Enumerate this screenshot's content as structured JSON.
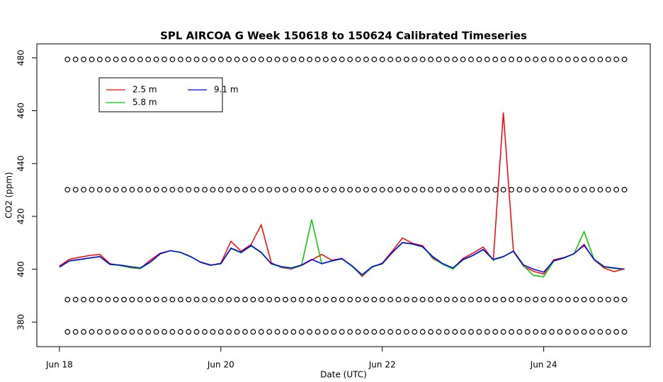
{
  "chart_data": {
    "type": "line",
    "title": "SPL AIRCOA G  Week 150618 to 150624  Calibrated Timeseries",
    "x_label": "Date (UTC)",
    "y_label": "CO2 (ppm)",
    "xlim": [
      -0.28,
      7.32
    ],
    "ylim": [
      370.7,
      485.3
    ],
    "xticks": [
      {
        "value": 0,
        "label": "Jun 18"
      },
      {
        "value": 2,
        "label": "Jun 20"
      },
      {
        "value": 4,
        "label": "Jun 22"
      },
      {
        "value": 6,
        "label": "Jun 24"
      }
    ],
    "yticks": [
      380,
      400,
      420,
      440,
      460,
      480
    ],
    "x": [
      0,
      0.125,
      0.25,
      0.375,
      0.5,
      0.625,
      0.75,
      0.875,
      1,
      1.125,
      1.25,
      1.375,
      1.5,
      1.625,
      1.75,
      1.875,
      2,
      2.125,
      2.25,
      2.375,
      2.5,
      2.625,
      2.75,
      2.875,
      3,
      3.125,
      3.25,
      3.375,
      3.5,
      3.625,
      3.75,
      3.875,
      4,
      4.125,
      4.25,
      4.375,
      4.5,
      4.625,
      4.75,
      4.875,
      5,
      5.125,
      5.25,
      5.375,
      5.5,
      5.625,
      5.75,
      5.875,
      6,
      6.125,
      6.25,
      6.375,
      6.5,
      6.625,
      6.75,
      6.875,
      7
    ],
    "series": [
      {
        "name": "2.5 m",
        "color": "#ff0000",
        "values": [
          401.2,
          403.8,
          404.5,
          405.2,
          405.6,
          402.1,
          401.4,
          400.6,
          400.2,
          403.4,
          406.1,
          407,
          406.4,
          404.8,
          402.5,
          401.4,
          402.3,
          410.6,
          406.8,
          409.4,
          416.8,
          402.4,
          400.6,
          400.1,
          401.4,
          403.5,
          405.6,
          403.4,
          404.1,
          401.2,
          397.3,
          400.8,
          402.3,
          406.9,
          411.8,
          409.8,
          408.9,
          404.1,
          401.9,
          400.2,
          404.1,
          406.1,
          408.4,
          403.4,
          459.3,
          406.6,
          401.1,
          399.2,
          398.2,
          403.6,
          404.4,
          405.8,
          409.4,
          403.5,
          400.4,
          399.1,
          400.2
        ]
      },
      {
        "name": "5.8 m",
        "color": "#00cc00",
        "values": [
          400.8,
          403.1,
          403.6,
          404.2,
          404.7,
          401.8,
          401.4,
          400.7,
          400.2,
          402.6,
          405.8,
          407,
          406.3,
          404.7,
          402.6,
          401.5,
          402,
          407.8,
          406.2,
          408.8,
          406.2,
          402,
          400.8,
          400.3,
          401.4,
          418.8,
          402,
          403.1,
          403.9,
          401.1,
          397.6,
          400.8,
          402,
          406.3,
          410,
          409.5,
          408.4,
          404.5,
          401.8,
          400.1,
          403.5,
          405.2,
          407.4,
          403.5,
          404.7,
          406.8,
          401.3,
          397.6,
          397.2,
          403.1,
          404.2,
          405.8,
          414.2,
          403.6,
          400.8,
          400.3,
          400
        ]
      },
      {
        "name": "9.1 m",
        "color": "#0000ff",
        "values": [
          400.8,
          403.2,
          403.7,
          404.3,
          404.8,
          401.9,
          401.6,
          401,
          400.5,
          402.7,
          405.9,
          407,
          406.4,
          404.8,
          402.7,
          401.6,
          402.1,
          408,
          406.4,
          409,
          406.4,
          402.1,
          401,
          400.5,
          401.6,
          403.7,
          402.1,
          403.2,
          404,
          401.3,
          397.9,
          401,
          402.1,
          406.4,
          410.1,
          409.6,
          408.5,
          404.8,
          402.1,
          400.5,
          403.7,
          405.3,
          407.5,
          403.7,
          404.8,
          406.9,
          401.6,
          400,
          398.9,
          403.2,
          404.3,
          405.9,
          409,
          403.7,
          401,
          400.5,
          400
        ]
      },
      {
        "marker": "circle",
        "color": "#000000",
        "x": [
          0.1,
          0.2,
          0.3,
          0.4,
          0.5,
          0.6,
          0.7,
          0.8,
          0.9,
          1,
          1.1,
          1.2,
          1.3,
          1.4,
          1.5,
          1.6,
          1.7,
          1.8,
          1.9,
          2,
          2.1,
          2.2,
          2.3,
          2.4,
          2.5,
          2.6,
          2.7,
          2.8,
          2.9,
          3,
          3.1,
          3.2,
          3.3,
          3.4,
          3.5,
          3.6,
          3.7,
          3.8,
          3.9,
          4,
          4.1,
          4.2,
          4.3,
          4.4,
          4.5,
          4.6,
          4.7,
          4.8,
          4.9,
          5,
          5.1,
          5.2,
          5.3,
          5.4,
          5.5,
          5.6,
          5.7,
          5.8,
          5.9,
          6,
          6.1,
          6.2,
          6.3,
          6.4,
          6.5,
          6.6,
          6.7,
          6.8,
          6.9,
          7
        ],
        "values": [
          479.4,
          479.4,
          479.4,
          479.4,
          479.4,
          479.4,
          479.4,
          479.4,
          479.4,
          479.4,
          479.4,
          479.4,
          479.4,
          479.4,
          479.4,
          479.4,
          479.4,
          479.4,
          479.4,
          479.4,
          479.4,
          479.4,
          479.4,
          479.4,
          479.4,
          479.4,
          479.4,
          479.4,
          479.4,
          479.4,
          479.4,
          479.4,
          479.4,
          479.4,
          479.4,
          479.4,
          479.4,
          479.4,
          479.4,
          479.4,
          479.4,
          479.4,
          479.4,
          479.4,
          479.4,
          479.4,
          479.4,
          479.4,
          479.4,
          479.4,
          479.4,
          479.4,
          479.4,
          479.4,
          479.4,
          479.4,
          479.4,
          479.4,
          479.4,
          479.4,
          479.4,
          479.4,
          479.4,
          479.4,
          479.4,
          479.4,
          479.4,
          479.4,
          479.4,
          479.4
        ]
      },
      {
        "marker": "circle",
        "color": "#000000",
        "x": [
          0.1,
          0.2,
          0.3,
          0.4,
          0.5,
          0.6,
          0.7,
          0.8,
          0.9,
          1,
          1.1,
          1.2,
          1.3,
          1.4,
          1.5,
          1.6,
          1.7,
          1.8,
          1.9,
          2,
          2.1,
          2.2,
          2.3,
          2.4,
          2.5,
          2.6,
          2.7,
          2.8,
          2.9,
          3,
          3.1,
          3.2,
          3.3,
          3.4,
          3.5,
          3.6,
          3.7,
          3.8,
          3.9,
          4,
          4.1,
          4.2,
          4.3,
          4.4,
          4.5,
          4.6,
          4.7,
          4.8,
          4.9,
          5,
          5.1,
          5.2,
          5.3,
          5.4,
          5.5,
          5.6,
          5.7,
          5.8,
          5.9,
          6,
          6.1,
          6.2,
          6.3,
          6.4,
          6.5,
          6.6,
          6.7,
          6.8,
          6.9,
          7
        ],
        "values": [
          430.1,
          430.1,
          430.1,
          430.1,
          430.1,
          430.1,
          430.1,
          430.1,
          430.1,
          430.1,
          430.1,
          430.1,
          430.1,
          430.1,
          430.1,
          430.1,
          430.1,
          430.1,
          430.1,
          430.1,
          430.1,
          430.1,
          430.1,
          430.1,
          430.1,
          430.1,
          430.1,
          430.1,
          430.1,
          430.1,
          430.1,
          430.1,
          430.1,
          430.1,
          430.1,
          430.1,
          430.1,
          430.1,
          430.1,
          430.1,
          430.1,
          430.1,
          430.1,
          430.1,
          430.1,
          430.1,
          430.1,
          430.1,
          430.1,
          430.1,
          430.1,
          430.1,
          430.1,
          430.1,
          430.1,
          430.1,
          430.1,
          430.1,
          430.1,
          430.1,
          430.1,
          430.1,
          430.1,
          430.1,
          430.1,
          430.1,
          430.1,
          430.1,
          430.1,
          430.1
        ]
      },
      {
        "marker": "circle",
        "color": "#000000",
        "x": [
          0.1,
          0.2,
          0.3,
          0.4,
          0.5,
          0.6,
          0.7,
          0.8,
          0.9,
          1,
          1.1,
          1.2,
          1.3,
          1.4,
          1.5,
          1.6,
          1.7,
          1.8,
          1.9,
          2,
          2.1,
          2.2,
          2.3,
          2.4,
          2.5,
          2.6,
          2.7,
          2.8,
          2.9,
          3,
          3.1,
          3.2,
          3.3,
          3.4,
          3.5,
          3.6,
          3.7,
          3.8,
          3.9,
          4,
          4.1,
          4.2,
          4.3,
          4.4,
          4.5,
          4.6,
          4.7,
          4.8,
          4.9,
          5,
          5.1,
          5.2,
          5.3,
          5.4,
          5.5,
          5.6,
          5.7,
          5.8,
          5.9,
          6,
          6.1,
          6.2,
          6.3,
          6.4,
          6.5,
          6.6,
          6.7,
          6.8,
          6.9,
          7
        ],
        "values": [
          388.5,
          388.5,
          388.5,
          388.5,
          388.5,
          388.5,
          388.5,
          388.5,
          388.5,
          388.5,
          388.5,
          388.5,
          388.5,
          388.5,
          388.5,
          388.5,
          388.5,
          388.5,
          388.5,
          388.5,
          388.5,
          388.5,
          388.5,
          388.5,
          388.5,
          388.5,
          388.5,
          388.5,
          388.5,
          388.5,
          388.5,
          388.5,
          388.5,
          388.5,
          388.5,
          388.5,
          388.5,
          388.5,
          388.5,
          388.5,
          388.5,
          388.5,
          388.5,
          388.5,
          388.5,
          388.5,
          388.5,
          388.5,
          388.5,
          388.5,
          388.5,
          388.5,
          388.5,
          388.5,
          388.5,
          388.5,
          388.5,
          388.5,
          388.5,
          388.5,
          388.5,
          388.5,
          388.5,
          388.5,
          388.5,
          388.5,
          388.5,
          388.5,
          388.5,
          388.5
        ]
      },
      {
        "marker": "circle",
        "color": "#000000",
        "x": [
          0.1,
          0.2,
          0.3,
          0.4,
          0.5,
          0.6,
          0.7,
          0.8,
          0.9,
          1,
          1.1,
          1.2,
          1.3,
          1.4,
          1.5,
          1.6,
          1.7,
          1.8,
          1.9,
          2,
          2.1,
          2.2,
          2.3,
          2.4,
          2.5,
          2.6,
          2.7,
          2.8,
          2.9,
          3,
          3.1,
          3.2,
          3.3,
          3.4,
          3.5,
          3.6,
          3.7,
          3.8,
          3.9,
          4,
          4.1,
          4.2,
          4.3,
          4.4,
          4.5,
          4.6,
          4.7,
          4.8,
          4.9,
          5,
          5.1,
          5.2,
          5.3,
          5.4,
          5.5,
          5.6,
          5.7,
          5.8,
          5.9,
          6,
          6.1,
          6.2,
          6.3,
          6.4,
          6.5,
          6.6,
          6.7,
          6.8,
          6.9,
          7
        ],
        "values": [
          376.3,
          376.3,
          376.3,
          376.3,
          376.3,
          376.3,
          376.3,
          376.3,
          376.3,
          376.3,
          376.3,
          376.3,
          376.3,
          376.3,
          376.3,
          376.3,
          376.3,
          376.3,
          376.3,
          376.3,
          376.3,
          376.3,
          376.3,
          376.3,
          376.3,
          376.3,
          376.3,
          376.3,
          376.3,
          376.3,
          376.3,
          376.3,
          376.3,
          376.3,
          376.3,
          376.3,
          376.3,
          376.3,
          376.3,
          376.3,
          376.3,
          376.3,
          376.3,
          376.3,
          376.3,
          376.3,
          376.3,
          376.3,
          376.3,
          376.3,
          376.3,
          376.3,
          376.3,
          376.3,
          376.3,
          376.3,
          376.3,
          376.3,
          376.3,
          376.3,
          376.3,
          376.3,
          376.3,
          376.3,
          376.3,
          376.3,
          376.3,
          376.3,
          376.3,
          376.3
        ]
      }
    ]
  }
}
